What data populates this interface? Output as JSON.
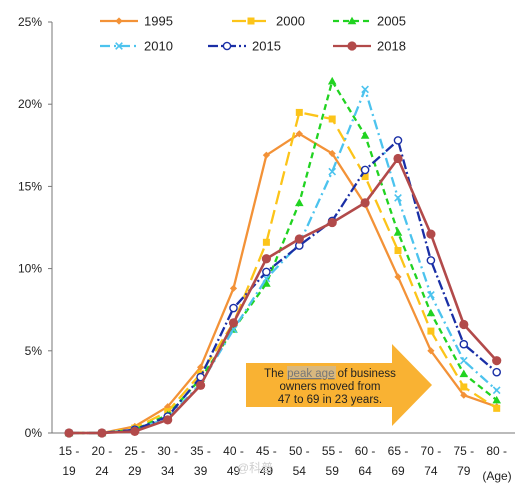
{
  "chart_data": {
    "type": "line",
    "x_label_top": [
      "15 -",
      "20 -",
      "25 -",
      "30 -",
      "35 -",
      "40 -",
      "45 -",
      "50 -",
      "55 -",
      "60 -",
      "65 -",
      "70 -",
      "75 -",
      "80 -"
    ],
    "x_label_bottom": [
      "19",
      "24",
      "29",
      "34",
      "39",
      "49",
      "49",
      "54",
      "59",
      "64",
      "69",
      "74",
      "79",
      ""
    ],
    "xlabel": "(Age)",
    "y_ticks": [
      "0%",
      "5%",
      "10%",
      "15%",
      "20%",
      "25%"
    ],
    "ylim": [
      0,
      25
    ],
    "grid": false,
    "legend_position": "top",
    "series": [
      {
        "name": "1995",
        "color": "#f39237",
        "dash": "solid",
        "marker": "diamond",
        "values": [
          0,
          0,
          0.4,
          1.6,
          4.0,
          8.8,
          16.9,
          18.2,
          17.0,
          13.9,
          9.5,
          5.0,
          2.3,
          1.6
        ]
      },
      {
        "name": "2000",
        "color": "#fcc419",
        "dash": "longdash",
        "marker": "square",
        "values": [
          0,
          0,
          0.3,
          1.3,
          3.6,
          6.7,
          11.6,
          19.5,
          19.1,
          15.6,
          11.1,
          6.2,
          2.8,
          1.5
        ]
      },
      {
        "name": "2005",
        "color": "#21d321",
        "dash": "dash",
        "marker": "triangle",
        "values": [
          0,
          0,
          0.2,
          1.1,
          3.3,
          6.3,
          9.1,
          14.0,
          21.4,
          18.1,
          12.2,
          7.3,
          3.6,
          2.0
        ]
      },
      {
        "name": "2010",
        "color": "#4cc3ee",
        "dash": "dashdot",
        "marker": "x",
        "values": [
          0,
          0,
          0.2,
          0.9,
          3.0,
          6.3,
          9.4,
          11.5,
          15.9,
          20.9,
          14.3,
          8.4,
          4.4,
          2.6
        ]
      },
      {
        "name": "2015",
        "color": "#1a2fa6",
        "dash": "dashdot",
        "marker": "circle-open",
        "values": [
          0,
          0,
          0.2,
          1.0,
          3.4,
          7.6,
          9.8,
          11.4,
          12.9,
          16.0,
          17.8,
          10.5,
          5.4,
          3.7
        ]
      },
      {
        "name": "2018",
        "color": "#b24a4a",
        "dash": "solid",
        "marker": "circle",
        "values": [
          0,
          0,
          0.1,
          0.8,
          2.9,
          6.7,
          10.6,
          11.8,
          12.8,
          14.0,
          16.7,
          12.1,
          6.6,
          4.4
        ]
      }
    ],
    "annotation": {
      "lines": [
        "The peak age of business",
        "owners moved from",
        "47 to 69 in 23 years."
      ],
      "highlight": "peak age",
      "arrow_color": "#f9b233"
    }
  },
  "watermark": "@科普"
}
